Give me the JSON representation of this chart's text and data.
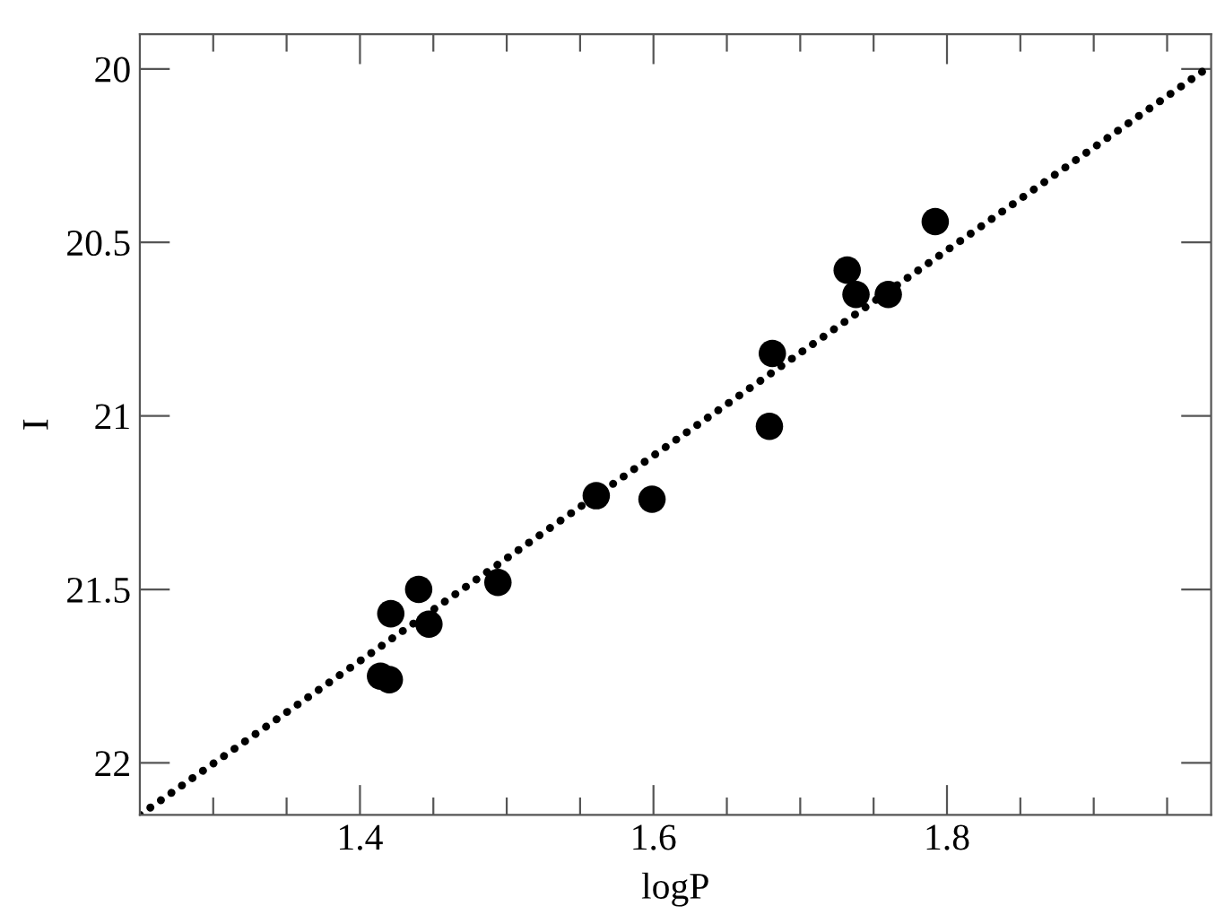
{
  "chart_data": {
    "type": "scatter",
    "xlabel": "logP",
    "ylabel": "I",
    "xlim": [
      1.25,
      1.98
    ],
    "ylim": [
      22.15,
      19.9
    ],
    "xticks": [
      {
        "value": 1.3,
        "label": null
      },
      {
        "value": 1.35,
        "label": null
      },
      1.4,
      {
        "value": 1.45,
        "label": null
      },
      {
        "value": 1.5,
        "label": null
      },
      {
        "value": 1.55,
        "label": null
      },
      1.6,
      {
        "value": 1.65,
        "label": null
      },
      {
        "value": 1.7,
        "label": null
      },
      {
        "value": 1.75,
        "label": null
      },
      1.8,
      {
        "value": 1.85,
        "label": null
      },
      {
        "value": 1.9,
        "label": null
      },
      {
        "value": 1.95,
        "label": null
      }
    ],
    "yticks": [
      20,
      20.5,
      21,
      21.5,
      22
    ],
    "grid": false,
    "legend": false,
    "series": [
      {
        "color": "#000000",
        "marker": "circle",
        "x": [
          1.792,
          1.732,
          1.738,
          1.76,
          1.681,
          1.679,
          1.561,
          1.599,
          1.494,
          1.44,
          1.421,
          1.447,
          1.414,
          1.42
        ],
        "values": [
          20.44,
          20.58,
          20.65,
          20.65,
          20.82,
          21.03,
          21.23,
          21.24,
          21.48,
          21.5,
          21.57,
          21.6,
          21.75,
          21.76
        ]
      },
      {
        "type": "line",
        "color": "#000000",
        "line_style": "dotted",
        "marker": "none",
        "x": [
          1.25,
          1.98
        ],
        "values": [
          22.15,
          19.99
        ]
      }
    ]
  }
}
